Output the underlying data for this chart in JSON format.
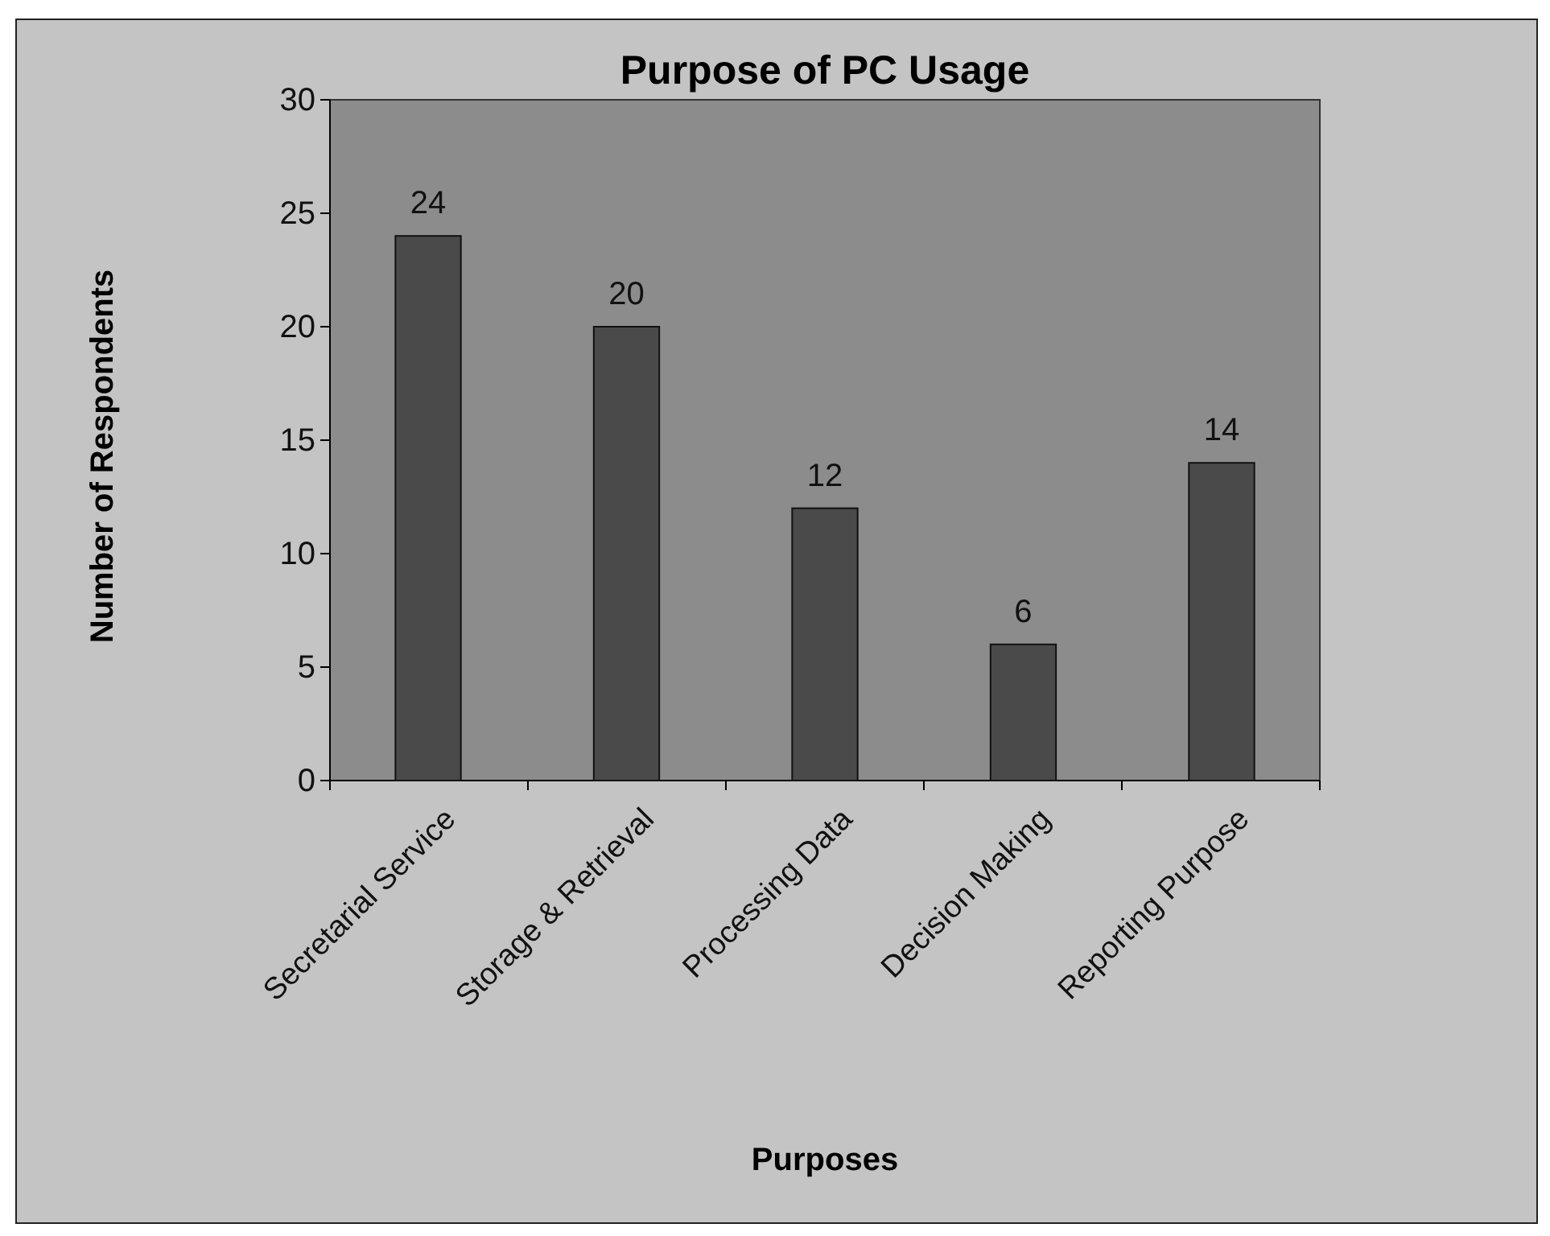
{
  "chart_data": {
    "type": "bar",
    "title": "Purpose of PC Usage",
    "xlabel": "Purposes",
    "ylabel": "Number of Respondents",
    "categories": [
      "Secretarial Service",
      "Storage & Retrieval",
      "Processing Data",
      "Decision Making",
      "Reporting Purpose"
    ],
    "values": [
      24,
      20,
      12,
      6,
      14
    ],
    "color": "#4a4a4a",
    "ylim": [
      0,
      30
    ],
    "yticks": [
      0,
      5,
      10,
      15,
      20,
      25,
      30
    ],
    "grid": false,
    "data_labels": true
  }
}
